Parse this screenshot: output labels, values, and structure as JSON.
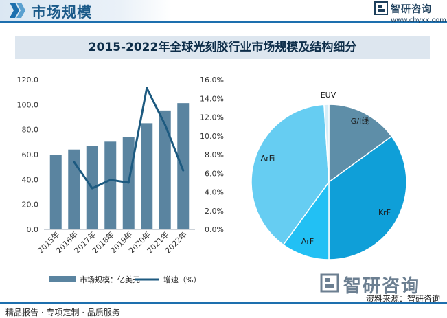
{
  "header": {
    "title": "市场规模"
  },
  "brand": {
    "name": "智研咨询",
    "url": "www.chyxx.com"
  },
  "watermark": {
    "name": "智研咨询"
  },
  "colors": {
    "bar": "#5a84a0",
    "line": "#1d5a80",
    "accent": "#1d6fae"
  },
  "chart_data": [
    {
      "type": "bar",
      "title": "2015-2022年全球光刻胶行业市场规模及结构细分",
      "categories": [
        "2015年",
        "2016年",
        "2017年",
        "2018年",
        "2019年",
        "2020年",
        "2021年",
        "2022年"
      ],
      "series": [
        {
          "name": "市场规模：亿美元",
          "type": "bar",
          "axis": "left",
          "values": [
            59.7,
            64.0,
            66.8,
            70.3,
            73.8,
            85.1,
            95.3,
            101.2
          ]
        },
        {
          "name": "增速（%）",
          "type": "line",
          "axis": "right",
          "values": [
            null,
            7.2,
            4.4,
            5.3,
            5.0,
            15.1,
            11.2,
            6.3
          ]
        }
      ],
      "ylim": [
        0,
        120
      ],
      "yticks": [
        "0.0",
        "20.0",
        "40.0",
        "60.0",
        "80.0",
        "100.0",
        "120.0"
      ],
      "y2lim": [
        0,
        16
      ],
      "y2ticks": [
        "0.0%",
        "2.0%",
        "4.0%",
        "6.0%",
        "8.0%",
        "10.0%",
        "12.0%",
        "14.0%",
        "16.0%"
      ],
      "legend": "bottom"
    },
    {
      "type": "pie",
      "labels": [
        "G/I线",
        "KrF",
        "ArF",
        "ArFi",
        "EUV"
      ],
      "values": [
        15,
        35,
        10,
        39,
        1
      ],
      "colors": [
        "#5e8ea8",
        "#0f9fd8",
        "#22c0f4",
        "#66cdf2",
        "#d5eef9"
      ]
    }
  ],
  "footer": {
    "left": "精品报告 · 专项定制 · 品质服务",
    "source": "资料来源：智研咨询"
  }
}
